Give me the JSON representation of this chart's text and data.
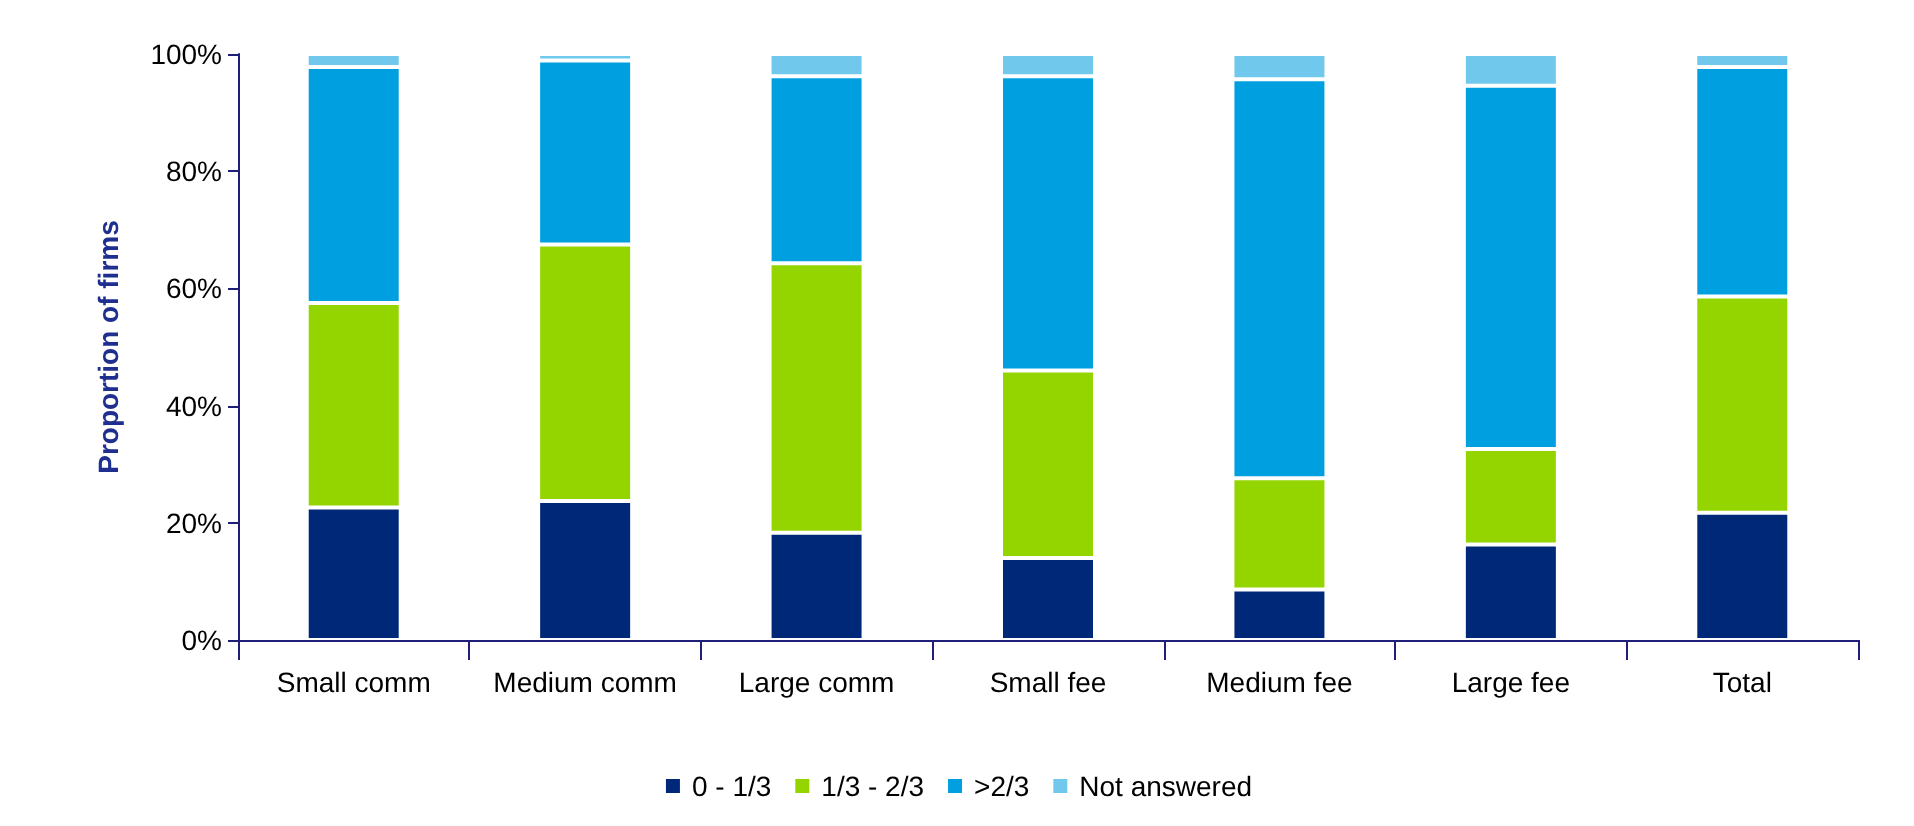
{
  "chart_data": {
    "type": "bar",
    "stacked": true,
    "ylabel": "Proportion of firms",
    "categories": [
      "Small comm",
      "Medium comm",
      "Large comm",
      "Small fee",
      "Medium fee",
      "Large fee",
      "Total"
    ],
    "series": [
      {
        "name": "0 - 1/3",
        "color": "#002878",
        "values": [
          22.6,
          23.7,
          18.3,
          14.0,
          8.6,
          16.3,
          21.7
        ]
      },
      {
        "name": "1/3 - 2/3",
        "color": "#94d500",
        "values": [
          34.9,
          43.8,
          46.0,
          32.0,
          19.0,
          16.3,
          36.9
        ]
      },
      {
        "name": ">2/3",
        "color": "#00a0e0",
        "values": [
          40.3,
          31.4,
          31.9,
          50.2,
          68.1,
          62.0,
          39.2
        ]
      },
      {
        "name": "Not answered",
        "color": "#70c8ec",
        "values": [
          2.2,
          1.1,
          3.8,
          3.8,
          4.3,
          5.4,
          2.2
        ]
      }
    ],
    "ylim": [
      0,
      100
    ],
    "yticks": [
      {
        "value": 0,
        "label": "0%"
      },
      {
        "value": 20,
        "label": "20%"
      },
      {
        "value": 40,
        "label": "40%"
      },
      {
        "value": 60,
        "label": "60%"
      },
      {
        "value": 80,
        "label": "80%"
      },
      {
        "value": 100,
        "label": "100%"
      }
    ],
    "grid": false,
    "legend": "bottom"
  }
}
